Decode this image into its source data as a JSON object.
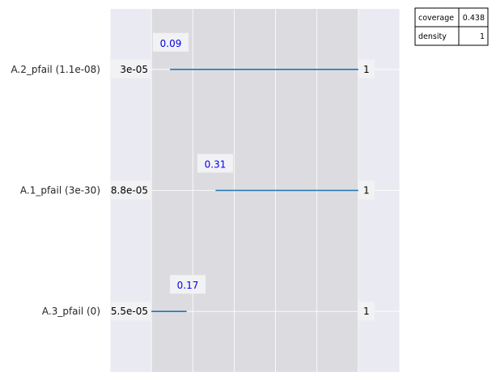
{
  "chart_data": {
    "type": "range",
    "rows": [
      {
        "label": "A.2_pfail (1.1e-08)",
        "low_label": "3e-05",
        "high_label": "1",
        "annotation": "0.09",
        "range": [
          0.09,
          1.0
        ]
      },
      {
        "label": "A.1_pfail (3e-30)",
        "low_label": "8.8e-05",
        "high_label": "1",
        "annotation": "0.31",
        "range": [
          0.31,
          1.0
        ]
      },
      {
        "label": "A.3_pfail (0)",
        "low_label": "5.5e-05",
        "high_label": "1",
        "annotation": "0.17",
        "range": [
          0.0,
          0.17
        ]
      }
    ],
    "xlim": [
      -0.2,
      1.2
    ],
    "shaded_range": [
      0.0,
      1.0
    ],
    "grid": true,
    "colors": {
      "line": "#1f77b4",
      "annotation": "#0000ee",
      "background": "#eaeaf2",
      "shade": "#dcdce0",
      "label_box": "#f2f2f4"
    },
    "stats": {
      "coverage_label": "coverage",
      "coverage_value": "0.438",
      "density_label": "density",
      "density_value": "1"
    }
  }
}
